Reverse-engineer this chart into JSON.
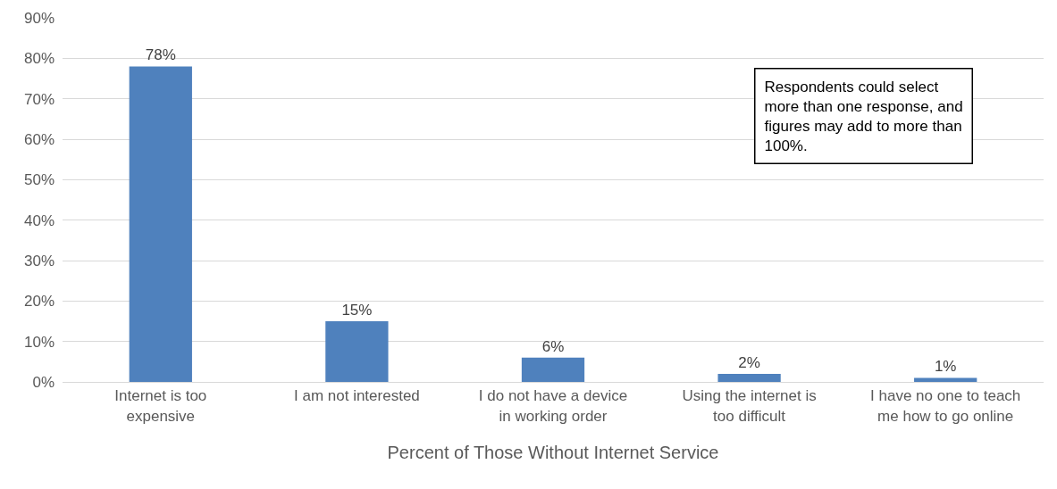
{
  "chart_data": {
    "type": "bar",
    "xlabel": "Percent of Those Without Internet Service",
    "categories": [
      "Internet is too expensive",
      "I am not interested",
      "I do not have a device in working order",
      "Using the internet is too difficult",
      "I have no one to teach me how to go online"
    ],
    "values": [
      78,
      15,
      6,
      2,
      1
    ],
    "color": "#4f81bd",
    "value_labels": [
      "78%",
      "15%",
      "6%",
      "2%",
      "1%"
    ],
    "ylim": [
      0,
      90
    ],
    "yticks": [
      {
        "value": 0,
        "label": "0%"
      },
      {
        "value": 10,
        "label": "10%"
      },
      {
        "value": 20,
        "label": "20%"
      },
      {
        "value": 30,
        "label": "30%"
      },
      {
        "value": 40,
        "label": "40%"
      },
      {
        "value": 50,
        "label": "50%"
      },
      {
        "value": 60,
        "label": "60%"
      },
      {
        "value": 70,
        "label": "70%"
      },
      {
        "value": 80,
        "label": "80%"
      },
      {
        "value": 90,
        "label": "90%"
      }
    ],
    "grid": "y",
    "annotations": [
      "Respondents could select more than one response, and figures may add to more than 100%."
    ]
  }
}
